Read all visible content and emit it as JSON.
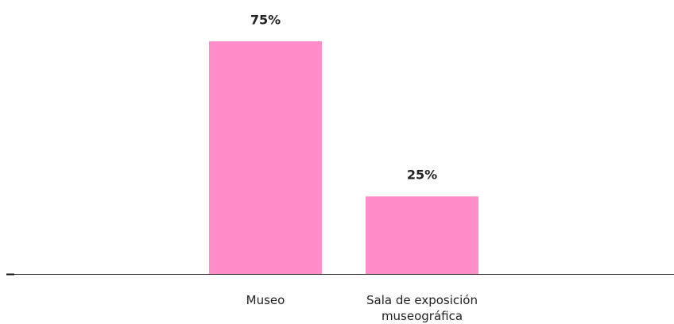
{
  "chart_data": {
    "type": "bar",
    "categories": [
      "Museo",
      "Sala de exposición museográfica"
    ],
    "values": [
      75,
      25
    ],
    "value_labels": [
      "75%",
      "25%"
    ],
    "color": "#ff8dc9",
    "ylim": [
      0,
      75
    ]
  }
}
